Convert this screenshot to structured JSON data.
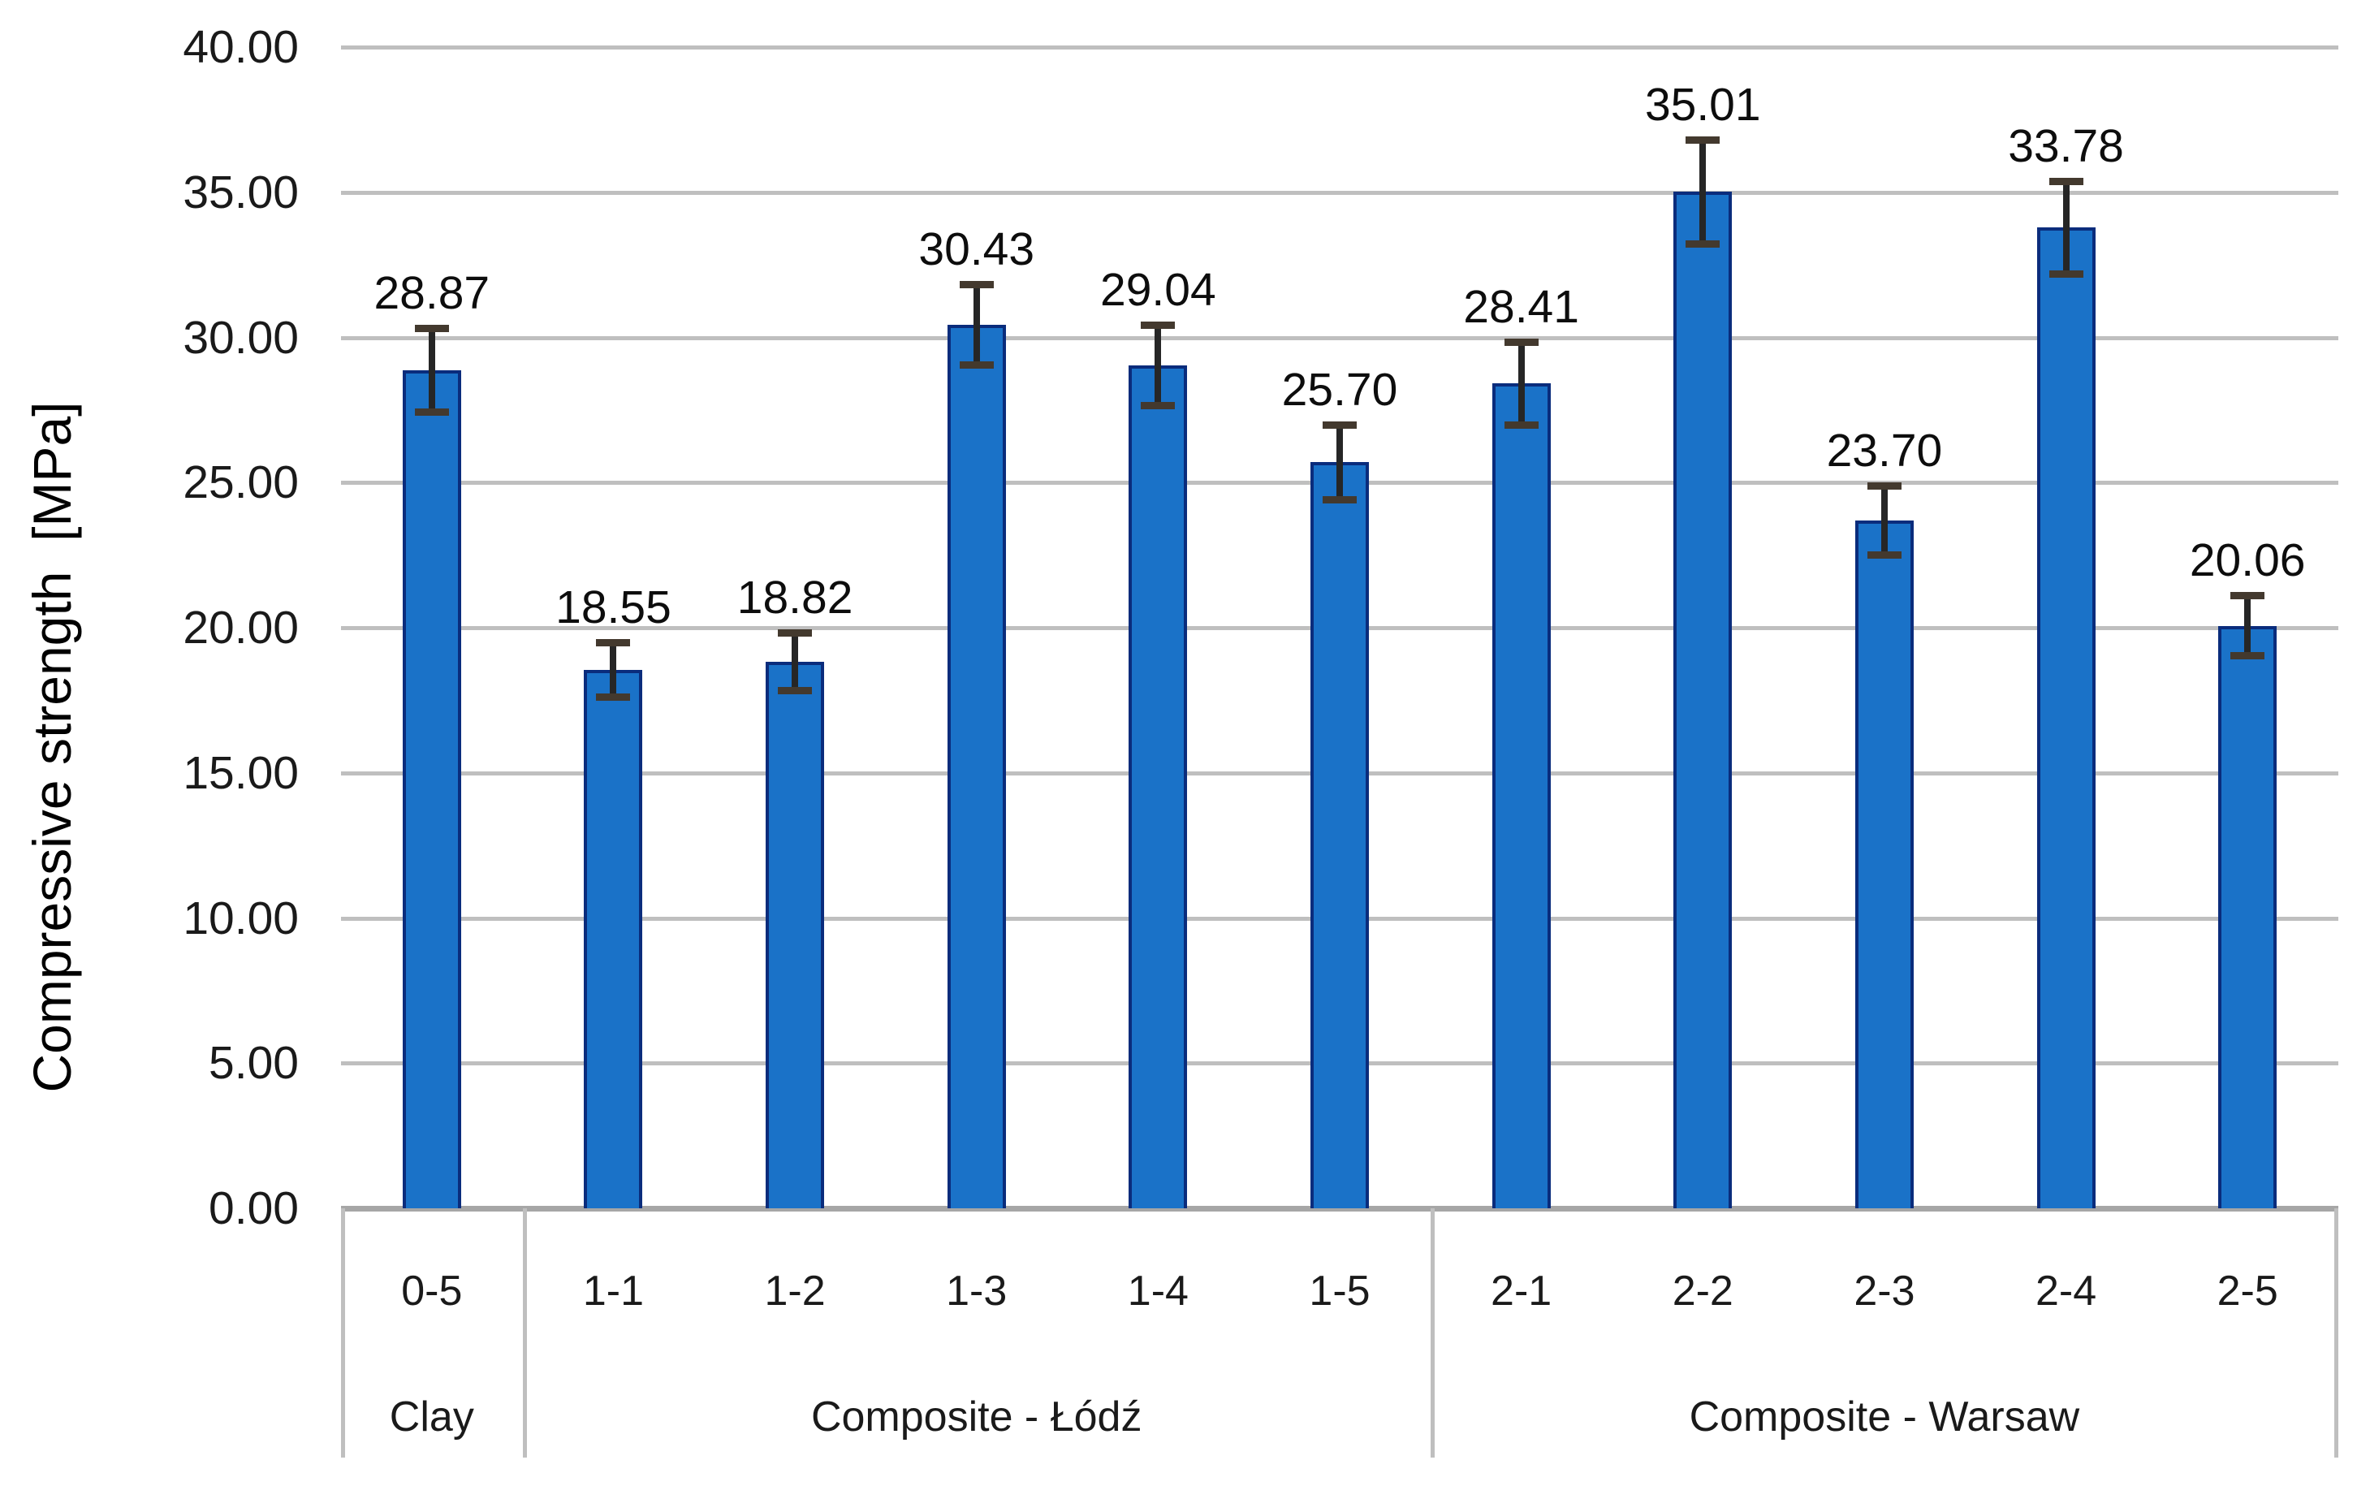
{
  "chart_data": {
    "type": "bar",
    "title": "",
    "ylabel": "Compressive strength  [MPa]",
    "xlabel": "",
    "ylim": [
      0,
      40
    ],
    "ytick_step": 5,
    "grid": true,
    "legend": "none",
    "yticks": [
      "40.00",
      "35.00",
      "30.00",
      "25.00",
      "20.00",
      "15.00",
      "10.00",
      "5.00",
      "0.00"
    ],
    "categories": [
      "0-5",
      "1-1",
      "1-2",
      "1-3",
      "1-4",
      "1-5",
      "2-1",
      "2-2",
      "2-3",
      "2-4",
      "2-5"
    ],
    "values": [
      28.87,
      18.55,
      18.82,
      30.43,
      29.04,
      25.7,
      28.41,
      35.01,
      23.7,
      33.78,
      20.06
    ],
    "value_labels": [
      "28.87",
      "18.55",
      "18.82",
      "30.43",
      "29.04",
      "25.70",
      "28.41",
      "35.01",
      "23.70",
      "33.78",
      "20.06"
    ],
    "error_bars": [
      1.45,
      0.95,
      1.0,
      1.4,
      1.4,
      1.3,
      1.45,
      1.8,
      1.2,
      1.6,
      1.05
    ],
    "groups": [
      {
        "label": "Clay",
        "span": 1
      },
      {
        "label": "Composite - Łódź",
        "span": 5
      },
      {
        "label": "Composite - Warsaw",
        "span": 5
      }
    ],
    "colors": {
      "bar_fill": "#1a72c8",
      "bar_border": "#0a2c7c",
      "gridline": "#bfbfbf",
      "axis_line": "#a6a6a6",
      "table_border": "#bfbfbf",
      "error_bar": "#262626",
      "error_cap": "#43392e",
      "text": "#1a1a1a",
      "background": "#ffffff"
    }
  }
}
